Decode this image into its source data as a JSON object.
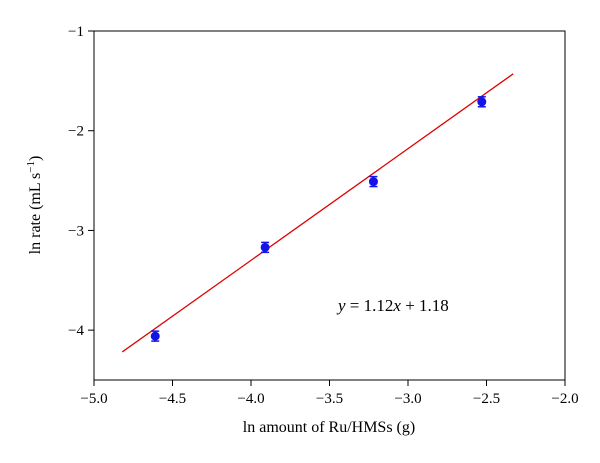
{
  "chart_data": {
    "type": "scatter",
    "title": "",
    "xlabel": "ln amount of Ru/HMSs (g)",
    "ylabel_main": "ln rate (mL s",
    "ylabel_exp": "−1",
    "ylabel_close": ")",
    "xlim": [
      -5.0,
      -2.0
    ],
    "ylim": [
      -4.5,
      -1.0
    ],
    "x_ticks": [
      -5.0,
      -4.5,
      -4.0,
      -3.5,
      -3.0,
      -2.5,
      -2.0
    ],
    "x_tick_labels": [
      "−5.0",
      "−4.5",
      "−4.0",
      "−3.5",
      "−3.0",
      "−2.5",
      "−2.0"
    ],
    "y_ticks": [
      -4,
      -3,
      -2,
      -1
    ],
    "y_tick_labels": [
      "−4",
      "−3",
      "−2",
      "−1"
    ],
    "grid": false,
    "series": [
      {
        "color": "#1414e6",
        "marker": "circle",
        "x": [
          -4.61,
          -3.91,
          -3.22,
          -2.53
        ],
        "y": [
          -4.06,
          -3.17,
          -2.51,
          -1.71
        ],
        "error": [
          0.05,
          0.05,
          0.05,
          0.05
        ]
      }
    ],
    "fit_line": {
      "color": "#e00000",
      "slope": 1.12,
      "intercept": 1.18,
      "x_range": [
        -4.82,
        -2.33
      ]
    },
    "annotation": {
      "y_var": "y",
      "eq_mid": " = 1.12",
      "x_var": "x",
      "eq_tail": " + 1.18"
    }
  }
}
